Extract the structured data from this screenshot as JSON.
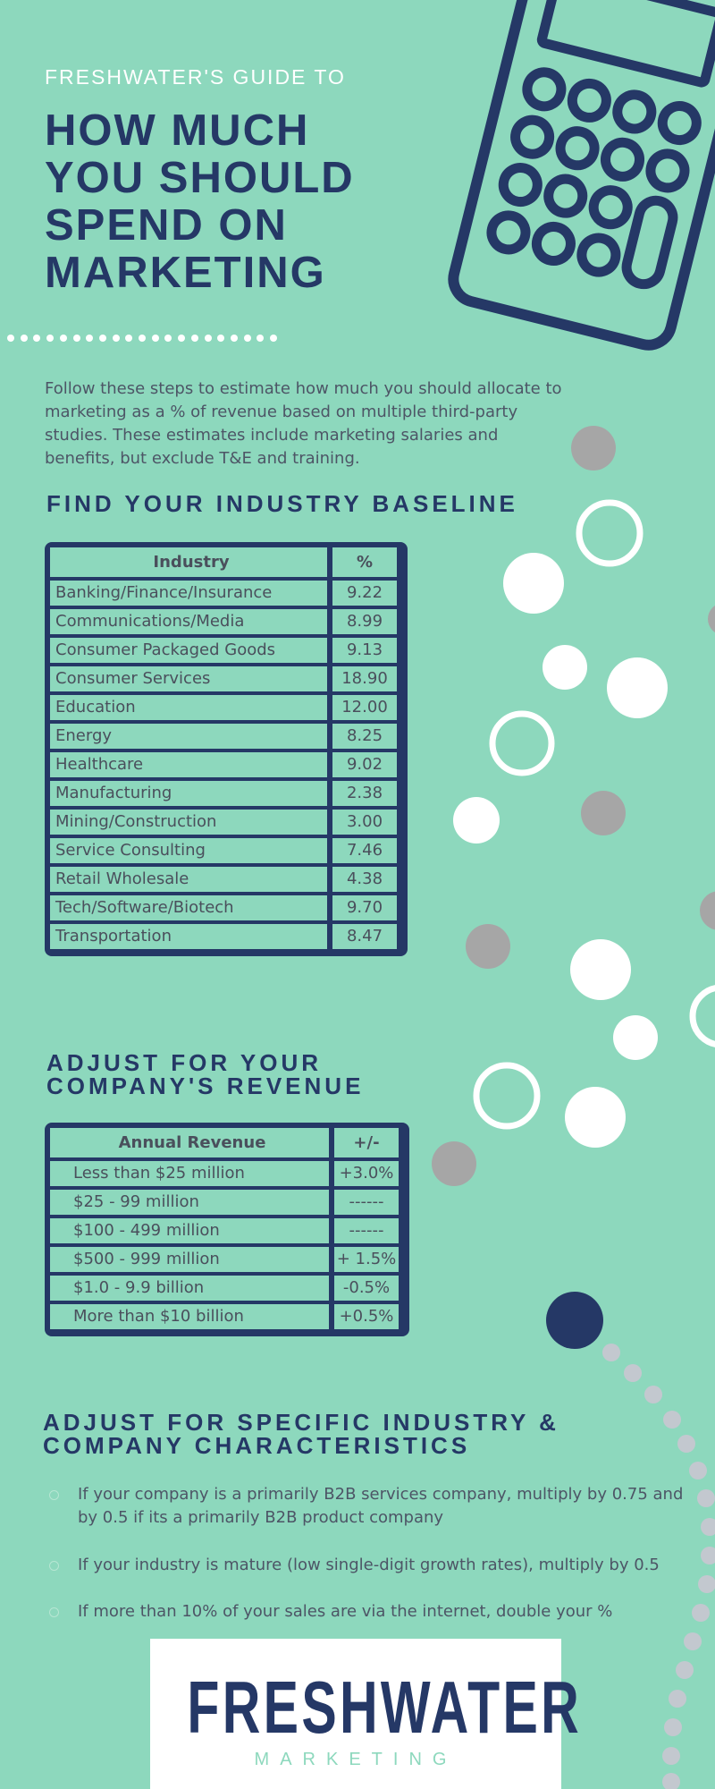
{
  "header": {
    "kicker": "FRESHWATER'S GUIDE TO",
    "title_lines": [
      "HOW MUCH",
      "YOU SHOULD",
      "SPEND ON",
      "MARKETING"
    ]
  },
  "intro": "Follow these steps to estimate how much you should allocate to marketing as a % of revenue based on multiple third-party studies. These estimates include marketing salaries and benefits, but exclude T&E and training.",
  "industry_section": {
    "heading": "FIND YOUR INDUSTRY BASELINE",
    "columns": [
      "Industry",
      "%"
    ],
    "rows": [
      [
        "Banking/Finance/Insurance",
        "9.22"
      ],
      [
        "Communications/Media",
        "8.99"
      ],
      [
        "Consumer Packaged Goods",
        "9.13"
      ],
      [
        "Consumer Services",
        "18.90"
      ],
      [
        "Education",
        "12.00"
      ],
      [
        "Energy",
        "8.25"
      ],
      [
        "Healthcare",
        "9.02"
      ],
      [
        "Manufacturing",
        "2.38"
      ],
      [
        "Mining/Construction",
        "3.00"
      ],
      [
        "Service Consulting",
        "7.46"
      ],
      [
        "Retail Wholesale",
        "4.38"
      ],
      [
        "Tech/Software/Biotech",
        "9.70"
      ],
      [
        "Transportation",
        "8.47"
      ]
    ]
  },
  "revenue_section": {
    "heading_lines": [
      "ADJUST FOR YOUR",
      "COMPANY'S REVENUE"
    ],
    "columns": [
      "Annual Revenue",
      "+/-"
    ],
    "rows": [
      [
        "Less than $25 million",
        "+3.0%"
      ],
      [
        "$25 - 99 million",
        "------"
      ],
      [
        "$100 - 499 million",
        "------"
      ],
      [
        "$500 - 999 million",
        "+ 1.5%"
      ],
      [
        "$1.0 - 9.9 billion",
        "-0.5%"
      ],
      [
        "More than $10 billion",
        "+0.5%"
      ]
    ]
  },
  "characteristics_section": {
    "heading_lines": [
      "ADJUST FOR SPECIFIC INDUSTRY &",
      "COMPANY CHARACTERISTICS"
    ],
    "items": [
      "If your company is a primarily B2B services company, multiply by 0.75 and by 0.5 if its a primarily B2B product company",
      "If your industry is mature (low single-digit growth rates), multiply by 0.5",
      "If more than 10% of your sales are via the internet, double your %"
    ]
  },
  "logo": {
    "name": "FRESHWATER",
    "subtitle": "MARKETING"
  },
  "colors": {
    "background": "#8dd8bd",
    "navy": "#253866",
    "white": "#ffffff",
    "gray_dot": "#a6a6a6"
  },
  "icons": [
    "calculator-icon",
    "decorative-circles"
  ]
}
